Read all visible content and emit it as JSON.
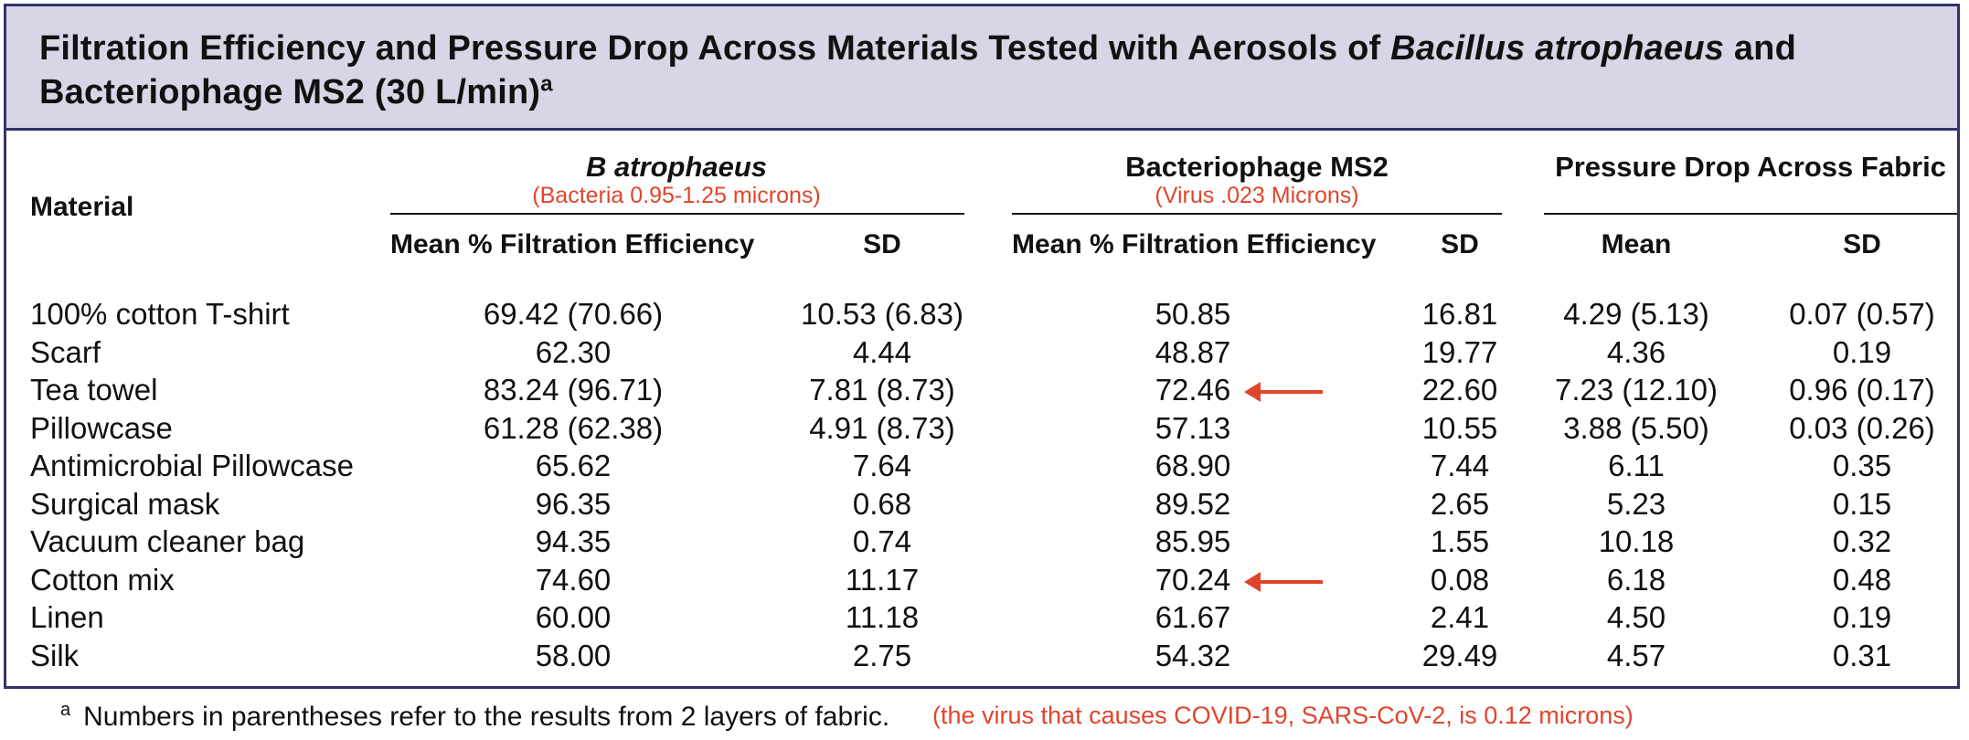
{
  "title": {
    "part1": "Filtration Efficiency and Pressure Drop Across Materials Tested with Aerosols of ",
    "italic": "Bacillus atrophaeus",
    "part2": " and Bacteriophage MS2 (30 L/min)",
    "superscript": "a"
  },
  "header": {
    "material": "Material",
    "group_b": "B atrophaeus",
    "group_b_note": "(Bacteria 0.95-1.25 microns)",
    "group_ms2": "Bacteriophage MS2",
    "group_ms2_note": "(Virus .023 Microns)",
    "group_pressure": "Pressure Drop Across Fabric",
    "col_mean_fe_b": "Mean % Filtration Efficiency",
    "col_sd_b": "SD",
    "col_mean_fe_ms2": "Mean % Filtration Efficiency",
    "col_sd_ms2": "SD",
    "col_mean_pd": "Mean",
    "col_sd_pd": "SD"
  },
  "rows": [
    {
      "material": "100% cotton T-shirt",
      "b_mean": "69.42 (70.66)",
      "b_sd": "10.53 (6.83)",
      "ms2_mean": "50.85",
      "ms2_sd": "16.81",
      "pd_mean": "4.29 (5.13)",
      "pd_sd": "0.07 (0.57)",
      "arrow": false
    },
    {
      "material": "Scarf",
      "b_mean": "62.30",
      "b_sd": "4.44",
      "ms2_mean": "48.87",
      "ms2_sd": "19.77",
      "pd_mean": "4.36",
      "pd_sd": "0.19",
      "arrow": false
    },
    {
      "material": "Tea towel",
      "b_mean": "83.24 (96.71)",
      "b_sd": "7.81 (8.73)",
      "ms2_mean": "72.46",
      "ms2_sd": "22.60",
      "pd_mean": "7.23 (12.10)",
      "pd_sd": "0.96 (0.17)",
      "arrow": true
    },
    {
      "material": "Pillowcase",
      "b_mean": "61.28 (62.38)",
      "b_sd": "4.91 (8.73)",
      "ms2_mean": "57.13",
      "ms2_sd": "10.55",
      "pd_mean": "3.88 (5.50)",
      "pd_sd": "0.03 (0.26)",
      "arrow": false
    },
    {
      "material": "Antimicrobial Pillowcase",
      "b_mean": "65.62",
      "b_sd": "7.64",
      "ms2_mean": "68.90",
      "ms2_sd": "7.44",
      "pd_mean": "6.11",
      "pd_sd": "0.35",
      "arrow": false
    },
    {
      "material": "Surgical mask",
      "b_mean": "96.35",
      "b_sd": "0.68",
      "ms2_mean": "89.52",
      "ms2_sd": "2.65",
      "pd_mean": "5.23",
      "pd_sd": "0.15",
      "arrow": false
    },
    {
      "material": "Vacuum cleaner bag",
      "b_mean": "94.35",
      "b_sd": "0.74",
      "ms2_mean": "85.95",
      "ms2_sd": "1.55",
      "pd_mean": "10.18",
      "pd_sd": "0.32",
      "arrow": false
    },
    {
      "material": "Cotton mix",
      "b_mean": "74.60",
      "b_sd": "11.17",
      "ms2_mean": "70.24",
      "ms2_sd": "0.08",
      "pd_mean": "6.18",
      "pd_sd": "0.48",
      "arrow": true
    },
    {
      "material": "Linen",
      "b_mean": "60.00",
      "b_sd": "11.18",
      "ms2_mean": "61.67",
      "ms2_sd": "2.41",
      "pd_mean": "4.50",
      "pd_sd": "0.19",
      "arrow": false
    },
    {
      "material": "Silk",
      "b_mean": "58.00",
      "b_sd": "2.75",
      "ms2_mean": "54.32",
      "ms2_sd": "29.49",
      "pd_mean": "4.57",
      "pd_sd": "0.31",
      "arrow": false
    }
  ],
  "footnote": {
    "marker": "a",
    "text": "Numbers in parentheses refer to the results from 2 layers of fabric."
  },
  "covid_note": "(the virus that causes COVID-19, SARS-CoV-2, is 0.12 microns)",
  "colors": {
    "frame": "#33336b",
    "title_background": "#d6d6e6",
    "annotation_red": "#e0452c"
  }
}
